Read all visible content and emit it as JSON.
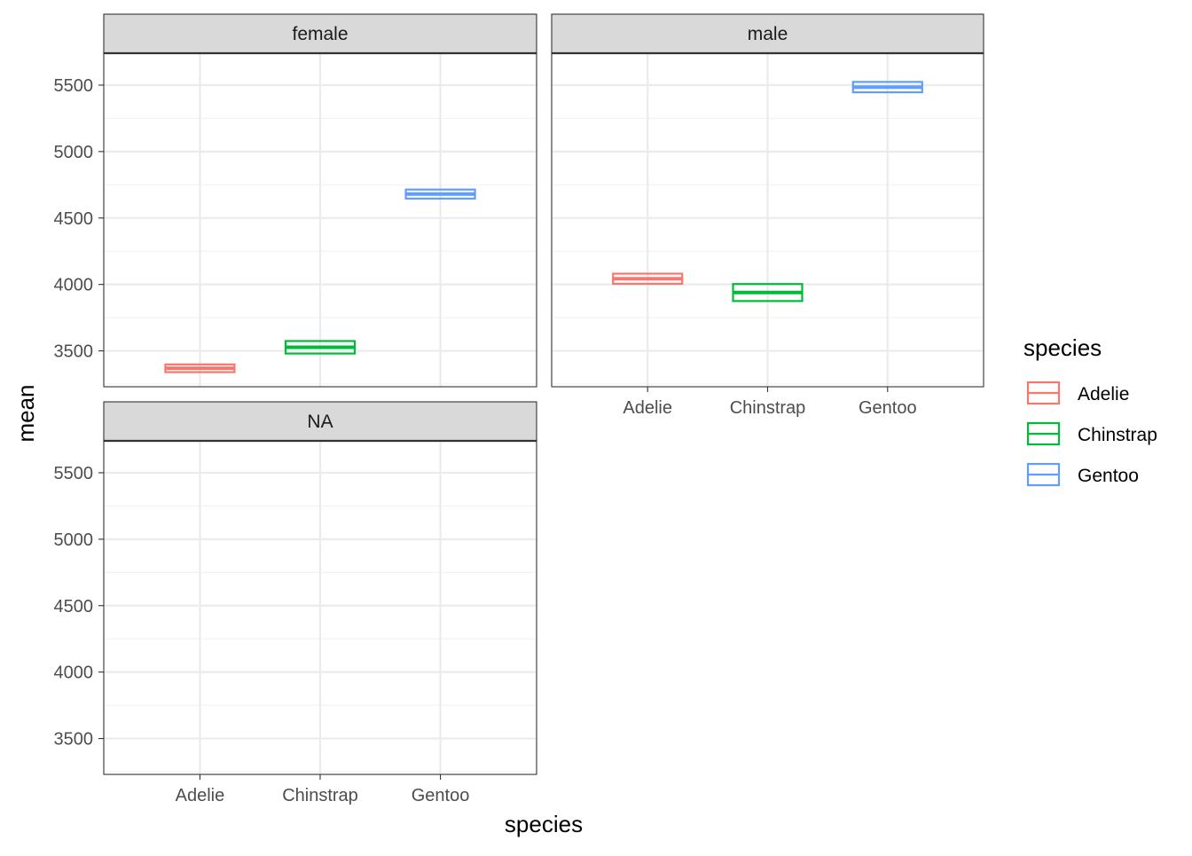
{
  "chart_data": {
    "type": "crossbar",
    "facet_by": "sex",
    "panels": [
      "female",
      "male",
      "NA"
    ],
    "categories": [
      "Adelie",
      "Chinstrap",
      "Gentoo"
    ],
    "xlabel": "species",
    "ylabel": "mean",
    "ylim": [
      3230,
      5740
    ],
    "y_ticks": [
      3500,
      4000,
      4500,
      5000,
      5500
    ],
    "grid": true,
    "legend": {
      "title": "species",
      "position": "right",
      "entries": [
        {
          "label": "Adelie",
          "color": "#F8766D"
        },
        {
          "label": "Chinstrap",
          "color": "#00BA38"
        },
        {
          "label": "Gentoo",
          "color": "#619CFF"
        }
      ]
    },
    "data": [
      {
        "panel": "female",
        "species": "Adelie",
        "ymin": 3340,
        "y": 3369,
        "ymax": 3398
      },
      {
        "panel": "female",
        "species": "Chinstrap",
        "ymin": 3480,
        "y": 3527,
        "ymax": 3574
      },
      {
        "panel": "female",
        "species": "Gentoo",
        "ymin": 4646,
        "y": 4680,
        "ymax": 4714
      },
      {
        "panel": "male",
        "species": "Adelie",
        "ymin": 4005,
        "y": 4043,
        "ymax": 4081
      },
      {
        "panel": "male",
        "species": "Chinstrap",
        "ymin": 3875,
        "y": 3939,
        "ymax": 4003
      },
      {
        "panel": "male",
        "species": "Gentoo",
        "ymin": 5446,
        "y": 5485,
        "ymax": 5524
      }
    ]
  }
}
